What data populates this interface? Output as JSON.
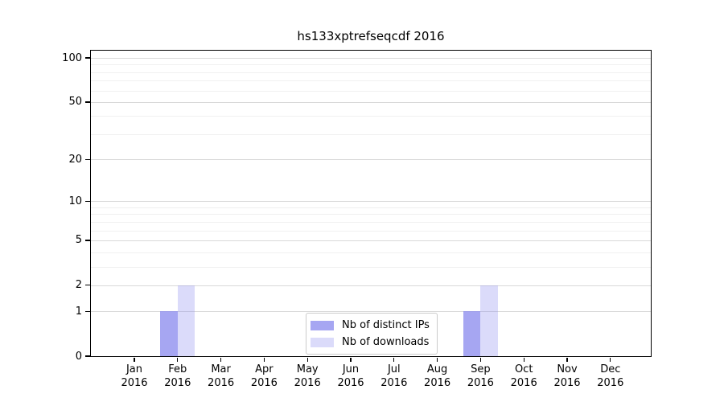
{
  "chart_data": {
    "type": "bar",
    "title": "hs133xptrefseqcdf 2016",
    "categories": [
      "Jan 2016",
      "Feb 2016",
      "Mar 2016",
      "Apr 2016",
      "May 2016",
      "Jun 2016",
      "Jul 2016",
      "Aug 2016",
      "Sep 2016",
      "Oct 2016",
      "Nov 2016",
      "Dec 2016"
    ],
    "series": [
      {
        "name": "Nb of distinct IPs",
        "values": [
          0,
          1,
          0,
          0,
          0,
          0,
          0,
          0,
          1,
          0,
          0,
          0
        ],
        "fill": "rgba(136,136,238,0.75)",
        "color_hex": "#a8a8f2"
      },
      {
        "name": "Nb of downloads",
        "values": [
          0,
          2,
          0,
          0,
          0,
          0,
          0,
          0,
          2,
          0,
          0,
          0
        ],
        "fill": "rgba(136,136,238,0.30)",
        "color_hex": "#dbdbf9"
      }
    ],
    "xlabel": "",
    "ylabel": "",
    "yscale": "log1p",
    "ylim": [
      0,
      112
    ],
    "y_major_ticks": [
      0,
      1,
      2,
      5,
      10,
      20,
      50,
      100
    ],
    "y_minor_gridlines": [
      3,
      4,
      6,
      7,
      8,
      9,
      30,
      40,
      60,
      70,
      80,
      90
    ],
    "grid": "horizontal-only",
    "legend_position": "lower-center-inside"
  },
  "colors": {
    "background": "#ffffff",
    "axis": "#000000",
    "grid_major": "#d9d9d9",
    "grid_minor": "#f0f0f0",
    "legend_border": "#cccccc"
  }
}
